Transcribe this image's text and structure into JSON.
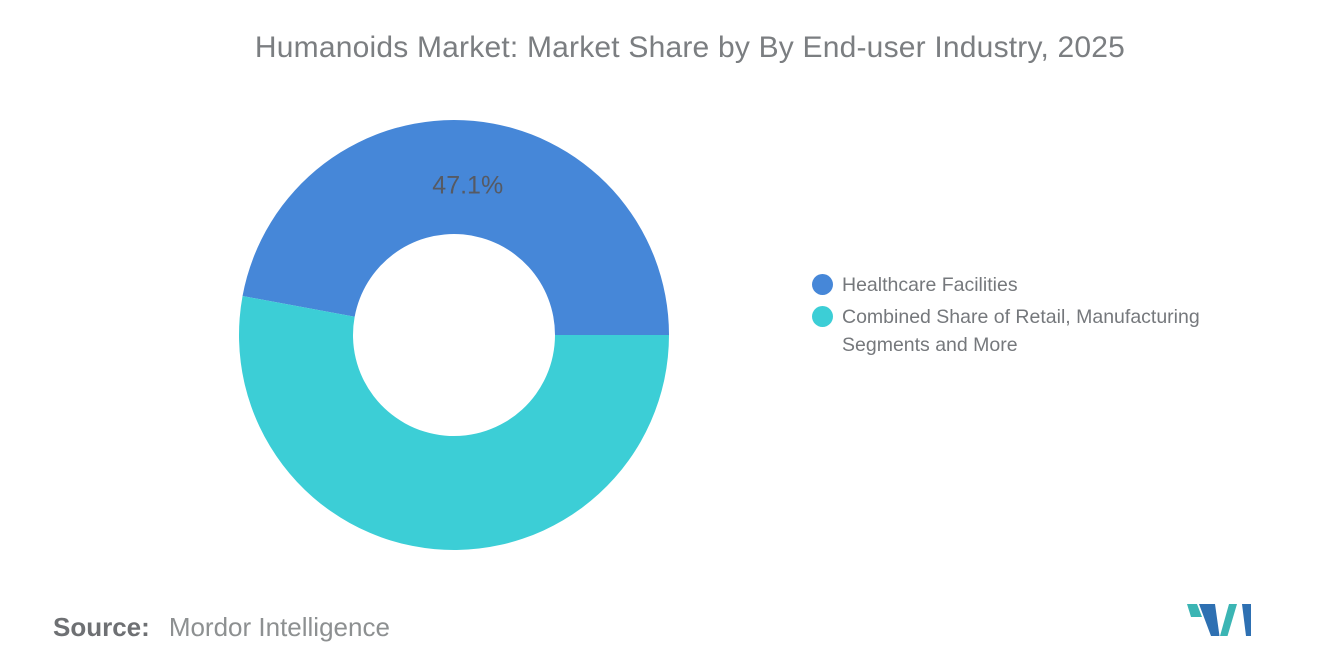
{
  "title": "Humanoids Market: Market Share by By End-user Industry, 2025",
  "chart_data": {
    "type": "pie",
    "subtype": "donut",
    "title": "Humanoids Market: Market Share by By End-user Industry, 2025",
    "slices": [
      {
        "label": "Healthcare Facilities",
        "value": 47.1,
        "data_label": "47.1%",
        "color": "#4687d8"
      },
      {
        "label": "Combined Share of Retail, Manufacturing Segments and More",
        "value": 52.9,
        "data_label": "",
        "color": "#3cced6"
      }
    ],
    "start_angle_deg": 0,
    "direction": "counterclockwise",
    "outer_radius_px": 215,
    "inner_radius_ratio": 0.47,
    "legend_position": "right",
    "data_label_color": "#565a63",
    "title_color": "#7b7e81",
    "legend_text_color": "#75787c",
    "background_color": "#ffffff"
  },
  "footer": {
    "source_label": "Source:",
    "source_value": "Mordor Intelligence"
  },
  "logo": {
    "name": "Mordor Intelligence logo mark",
    "teal": "#3bb5b4",
    "blue": "#2e70b2"
  }
}
